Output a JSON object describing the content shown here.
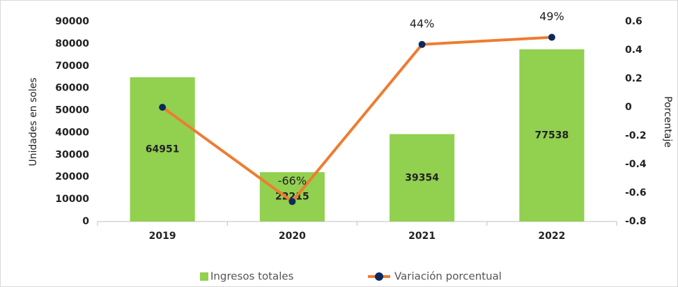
{
  "chart_data": {
    "type": "bar",
    "categories": [
      "2019",
      "2020",
      "2021",
      "2022"
    ],
    "series": [
      {
        "name": "Ingresos totales",
        "type": "bar",
        "color": "#92d050",
        "values": [
          64951,
          22215,
          39354,
          77538
        ]
      },
      {
        "name": "Variación porcentual",
        "type": "line",
        "axis": "y2",
        "color": "#ed7d31",
        "marker_color": "#0d2a5c",
        "values": [
          0,
          -0.66,
          0.44,
          0.49
        ],
        "value_labels": [
          null,
          "-66%",
          "44%",
          "49%"
        ]
      }
    ],
    "y_label": "Unidades en soles",
    "y2_label": "Porcentaje",
    "ylim": [
      0,
      90000
    ],
    "yticks": [
      0,
      10000,
      20000,
      30000,
      40000,
      50000,
      60000,
      70000,
      80000,
      90000
    ],
    "y2lim": [
      -0.8,
      0.6
    ],
    "y2ticks": [
      -0.8,
      -0.6,
      -0.4,
      -0.2,
      0,
      0.2,
      0.4,
      0.6
    ],
    "legend": "bottom"
  }
}
